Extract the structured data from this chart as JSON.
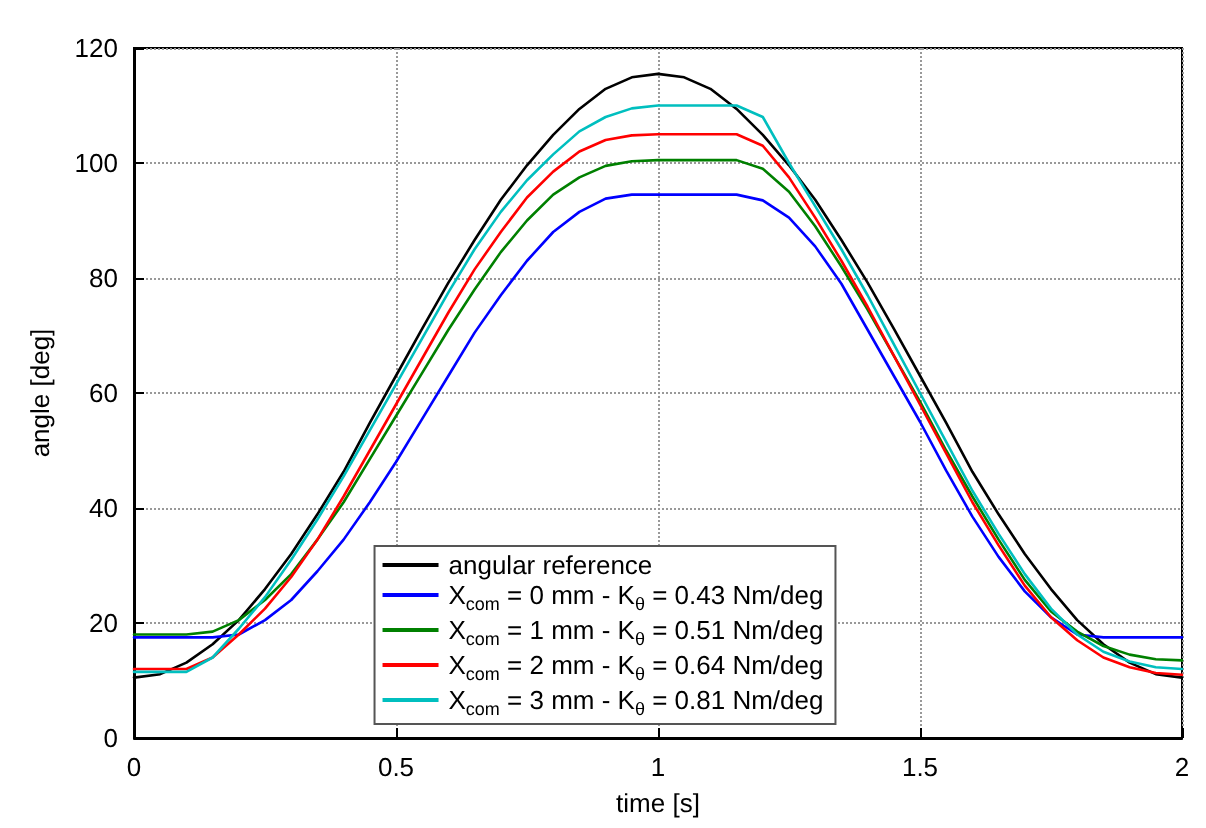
{
  "chart_data": {
    "type": "line",
    "xlabel": "time [s]",
    "ylabel": "angle [deg]",
    "x": [
      0,
      0.05,
      0.1,
      0.15,
      0.2,
      0.25,
      0.3,
      0.35,
      0.4,
      0.45,
      0.5,
      0.55,
      0.6,
      0.65,
      0.7,
      0.75,
      0.8,
      0.85,
      0.9,
      0.95,
      1,
      1.05,
      1.1,
      1.15,
      1.2,
      1.25,
      1.3,
      1.35,
      1.4,
      1.45,
      1.5,
      1.55,
      1.6,
      1.65,
      1.7,
      1.75,
      1.8,
      1.85,
      1.9,
      1.95,
      2
    ],
    "series": [
      {
        "name": "angular reference",
        "color": "#000000",
        "values": [
          10.5,
          11.1,
          13.1,
          16.3,
          20.5,
          25.9,
          32,
          38.9,
          46.3,
          54.8,
          63,
          71.2,
          79.2,
          86.6,
          93.6,
          99.6,
          104.9,
          109.4,
          112.9,
          114.9,
          115.5,
          114.9,
          112.9,
          109.4,
          104.9,
          99.6,
          93.6,
          86.6,
          79.2,
          71.2,
          63,
          54.8,
          46.3,
          38.9,
          32,
          25.9,
          20.5,
          16.3,
          13.1,
          11.1,
          10.5
        ]
      },
      {
        "name": "X$_{com}$ = 0 mm - K$_{θ}$ = 0.43 Nm/deg",
        "color": "#0000ff",
        "values": [
          17.5,
          17.5,
          17.5,
          17.5,
          18,
          20.5,
          24,
          29,
          34.5,
          41,
          48,
          55.5,
          63,
          70.5,
          77,
          83,
          88,
          91.5,
          93.8,
          94.5,
          94.5,
          94.5,
          94.5,
          94.5,
          93.5,
          90.5,
          85.5,
          79,
          71,
          63,
          55,
          46.5,
          38.5,
          31.5,
          25.5,
          21,
          18,
          17.5,
          17.5,
          17.5,
          17.5
        ]
      },
      {
        "name": "X$_{com}$ = 1 mm - K$_{θ}$ = 0.51 Nm/deg",
        "color": "#008000",
        "values": [
          18,
          18,
          18,
          18.5,
          20.5,
          24,
          28.5,
          34.5,
          41,
          48.5,
          56,
          63.5,
          71,
          78,
          84.5,
          90,
          94.5,
          97.5,
          99.5,
          100.3,
          100.5,
          100.5,
          100.5,
          100.5,
          99,
          95,
          89,
          82,
          74.5,
          66.5,
          58.5,
          50,
          42,
          34.5,
          27.5,
          22,
          18.5,
          16,
          14.5,
          13.7,
          13.5
        ]
      },
      {
        "name": "X$_{com}$ = 2 mm - K$_{θ}$ = 0.64 Nm/deg",
        "color": "#ff0000",
        "values": [
          12,
          12,
          12,
          14,
          18,
          22.5,
          28,
          34.5,
          42,
          50,
          58,
          66,
          74,
          81.5,
          88,
          94,
          98.5,
          102,
          104,
          104.8,
          105,
          105,
          105,
          105,
          103,
          97.5,
          90.5,
          83,
          75,
          66.5,
          58,
          49.5,
          41,
          33.5,
          26.5,
          21,
          17,
          14,
          12.3,
          11.3,
          11
        ]
      },
      {
        "name": "X$_{com}$ = 3 mm - K$_{θ}$ = 0.81 Nm/deg",
        "color": "#00bfbf",
        "values": [
          11.5,
          11.5,
          11.5,
          14,
          19,
          24.5,
          31,
          38,
          45.5,
          53.5,
          61.5,
          69.5,
          77.5,
          85,
          91.5,
          97,
          101.5,
          105.5,
          108,
          109.5,
          110,
          110,
          110,
          110,
          108,
          100,
          92.5,
          85,
          77,
          68.5,
          60,
          51.5,
          43,
          35.5,
          28.5,
          22.5,
          18,
          15,
          13.3,
          12.3,
          12
        ]
      }
    ],
    "xlim": [
      0,
      2
    ],
    "xticks": [
      0,
      0.5,
      1,
      1.5,
      2
    ],
    "ylim": [
      0,
      120
    ],
    "yticks": [
      0,
      20,
      40,
      60,
      80,
      100,
      120
    ],
    "grid": true,
    "legend": "bottom",
    "marker": "none",
    "line_style": "solid"
  }
}
